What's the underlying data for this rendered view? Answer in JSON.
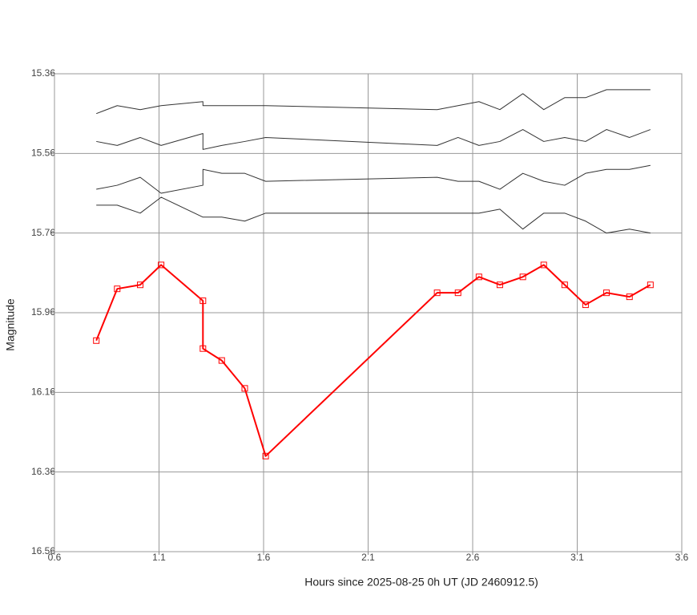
{
  "chart_data": {
    "type": "line",
    "x_label": "Hours since 2025-08-25 0h UT (JD 2460912.5)",
    "y_label": "Magnitude",
    "x": [
      0.8,
      0.9,
      1.01,
      1.11,
      1.31,
      1.31,
      1.4,
      1.51,
      1.61,
      2.43,
      2.53,
      2.63,
      2.73,
      2.84,
      2.94,
      3.04,
      3.14,
      3.24,
      3.35,
      3.45
    ],
    "series": [
      {
        "color": "#ff0000",
        "marker": "square",
        "values": [
          16.03,
          15.9,
          15.89,
          15.84,
          15.93,
          16.05,
          16.08,
          16.15,
          16.32,
          15.91,
          15.91,
          15.87,
          15.89,
          15.87,
          15.84,
          15.89,
          15.94,
          15.91,
          15.92,
          15.89
        ]
      },
      {
        "color": "#333333",
        "values": [
          15.46,
          15.44,
          15.45,
          15.44,
          15.43,
          15.44,
          15.44,
          15.44,
          15.44,
          15.45,
          15.44,
          15.43,
          15.45,
          15.41,
          15.45,
          15.42,
          15.42,
          15.4,
          15.4,
          15.4
        ]
      },
      {
        "color": "#333333",
        "values": [
          15.53,
          15.54,
          15.52,
          15.54,
          15.51,
          15.55,
          15.54,
          15.53,
          15.52,
          15.54,
          15.52,
          15.54,
          15.53,
          15.5,
          15.53,
          15.52,
          15.53,
          15.5,
          15.52,
          15.5
        ]
      },
      {
        "color": "#333333",
        "values": [
          15.65,
          15.64,
          15.62,
          15.66,
          15.64,
          15.6,
          15.61,
          15.61,
          15.63,
          15.62,
          15.63,
          15.63,
          15.65,
          15.61,
          15.63,
          15.64,
          15.61,
          15.6,
          15.6,
          15.59
        ]
      },
      {
        "color": "#333333",
        "values": [
          15.69,
          15.69,
          15.71,
          15.67,
          15.72,
          15.72,
          15.72,
          15.73,
          15.71,
          15.71,
          15.71,
          15.71,
          15.7,
          15.75,
          15.71,
          15.71,
          15.73,
          15.76,
          15.75,
          15.76
        ]
      }
    ],
    "xlim": [
      0.6,
      3.6
    ],
    "xticks": [
      0.6,
      1.1,
      1.6,
      2.1,
      2.6,
      3.1,
      3.6
    ],
    "ylim": [
      15.36,
      16.56
    ],
    "yticks": [
      15.36,
      15.56,
      15.76,
      15.96,
      16.16,
      16.36,
      16.56
    ],
    "y_inverted": true,
    "grid": true
  }
}
